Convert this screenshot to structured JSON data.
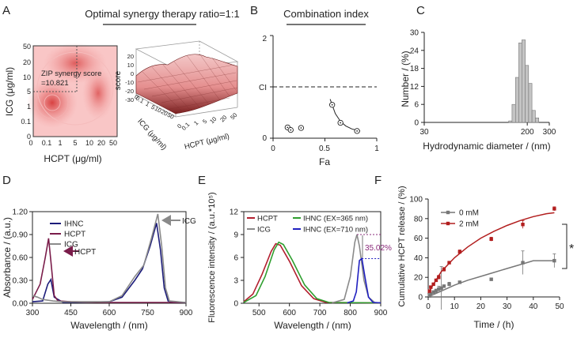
{
  "panels": {
    "A": {
      "letter": "A",
      "title": "Optimal synergy therapy ratio=1:1",
      "heatmap": {
        "ylabel": "ICG (μg/ml)",
        "xlabel": "HCPT (μg/ml)",
        "y_ticks": [
          "50",
          "20",
          "10",
          "5",
          "1",
          "0.1",
          "0"
        ],
        "x_ticks": [
          "0",
          "0.1",
          "1",
          "5",
          "10",
          "20",
          "50"
        ],
        "annotation_line1": "ZIP synergy score",
        "annotation_line2": "=10.821"
      },
      "surface": {
        "zlabel": "score",
        "z_ticks": [
          "20",
          "10",
          "0",
          "-10",
          "-20",
          "-30"
        ],
        "icg_ticks": [
          "0",
          "0.1",
          "1",
          "5",
          "10",
          "20",
          "50"
        ],
        "icg_label": "ICG (μg/ml)",
        "hcpt_ticks": [
          "0",
          "0.1",
          "1",
          "5",
          "10",
          "20",
          "50"
        ],
        "hcpt_label": "HCPT (μg/ml)"
      }
    },
    "B": {
      "letter": "B",
      "title": "Combination index",
      "ylabel": "CI",
      "xlabel": "Fa",
      "y_ticks": [
        "2",
        "1",
        "0"
      ],
      "x_ticks": [
        "0",
        "0.5",
        "1"
      ],
      "chart_data": {
        "type": "scatter",
        "title": "Combination index",
        "xlabel": "Fa",
        "ylabel": "CI",
        "xlim": [
          0,
          1
        ],
        "ylim": [
          0,
          2
        ],
        "reference_line_y": 1,
        "points": [
          {
            "fa": 0.14,
            "ci": 0.21
          },
          {
            "fa": 0.17,
            "ci": 0.16
          },
          {
            "fa": 0.27,
            "ci": 0.2
          },
          {
            "fa": 0.57,
            "ci": 0.65
          },
          {
            "fa": 0.65,
            "ci": 0.3
          },
          {
            "fa": 0.81,
            "ci": 0.14
          }
        ],
        "fit": [
          [
            0.55,
            0.76
          ],
          [
            0.6,
            0.48
          ],
          [
            0.65,
            0.33
          ],
          [
            0.7,
            0.24
          ],
          [
            0.76,
            0.18
          ],
          [
            0.84,
            0.14
          ]
        ]
      }
    },
    "C": {
      "letter": "C",
      "ylabel": "Number  / (%)",
      "xlabel": "Hydrodynamic diameter / (nm)",
      "chart_data": {
        "type": "bar",
        "xlabel": "Hydrodynamic diameter / (nm)",
        "ylabel": "Number / (%)",
        "x_scale": "log",
        "xlim": [
          30,
          300
        ],
        "ylim": [
          0,
          30
        ],
        "x_ticks": [
          "30",
          "200",
          "300"
        ],
        "y_ticks": [
          "0",
          "6",
          "12",
          "18",
          "24",
          "30"
        ],
        "bins": [
          {
            "from": 142,
            "to": 151,
            "value": 0.5
          },
          {
            "from": 151,
            "to": 161,
            "value": 6
          },
          {
            "from": 161,
            "to": 171,
            "value": 15
          },
          {
            "from": 171,
            "to": 181,
            "value": 26.5
          },
          {
            "from": 181,
            "to": 193,
            "value": 27.5
          },
          {
            "from": 193,
            "to": 205,
            "value": 19
          },
          {
            "from": 205,
            "to": 218,
            "value": 13
          },
          {
            "from": 218,
            "to": 232,
            "value": 4
          },
          {
            "from": 232,
            "to": 247,
            "value": 1.5
          }
        ]
      }
    },
    "D": {
      "letter": "D",
      "ylabel": "Absorbance / (a.u.)",
      "xlabel": "Wavelength / (nm)",
      "annot_hcpt": "HCPT",
      "annot_icg": "ICG",
      "chart_data": {
        "type": "line",
        "xlabel": "Wavelength / (nm)",
        "ylabel": "Absorbance / (a.u.)",
        "xlim": [
          300,
          900
        ],
        "ylim": [
          0,
          1.2
        ],
        "x_ticks": [
          "300",
          "450",
          "600",
          "750",
          "900"
        ],
        "y_ticks": [
          "0.00",
          "0.30",
          "0.60",
          "0.90",
          "1.20"
        ],
        "legend": [
          "IHNC",
          "HCPT",
          "ICG"
        ],
        "series": [
          {
            "name": "IHNC",
            "color": "#1c1c7a",
            "points": [
              [
                300,
                0.02
              ],
              [
                340,
                0.03
              ],
              [
                360,
                0.25
              ],
              [
                372,
                0.31
              ],
              [
                385,
                0.08
              ],
              [
                420,
                0.01
              ],
              [
                600,
                0.02
              ],
              [
                650,
                0.08
              ],
              [
                700,
                0.3
              ],
              [
                730,
                0.45
              ],
              [
                760,
                0.75
              ],
              [
                785,
                1.05
              ],
              [
                800,
                0.7
              ],
              [
                815,
                0.2
              ],
              [
                830,
                0.03
              ],
              [
                850,
                0.01
              ],
              [
                900,
                0.01
              ]
            ]
          },
          {
            "name": "HCPT",
            "color": "#7a1c4a",
            "points": [
              [
                300,
                0.05
              ],
              [
                330,
                0.25
              ],
              [
                350,
                0.6
              ],
              [
                363,
                0.85
              ],
              [
                372,
                0.55
              ],
              [
                385,
                0.1
              ],
              [
                400,
                0.03
              ],
              [
                450,
                0.02
              ],
              [
                600,
                0.01
              ],
              [
                900,
                0.01
              ]
            ]
          },
          {
            "name": "ICG",
            "color": "#8a8a8a",
            "points": [
              [
                300,
                0.1
              ],
              [
                320,
                0.08
              ],
              [
                340,
                0.05
              ],
              [
                380,
                0.03
              ],
              [
                420,
                0.02
              ],
              [
                600,
                0.02
              ],
              [
                650,
                0.1
              ],
              [
                700,
                0.35
              ],
              [
                735,
                0.5
              ],
              [
                765,
                0.85
              ],
              [
                790,
                1.17
              ],
              [
                805,
                0.75
              ],
              [
                820,
                0.2
              ],
              [
                835,
                0.03
              ],
              [
                900,
                0.01
              ]
            ]
          }
        ]
      }
    },
    "E": {
      "letter": "E",
      "ylabel": "Fluorescence intensity / (a.u.*10⁵)",
      "xlabel": "Wavelength / (nm)",
      "percent": "35.02%",
      "chart_data": {
        "type": "line",
        "xlabel": "Wavelength / (nm)",
        "ylabel": "Fluorescence intensity / (a.u.*10^5)",
        "xlim": [
          450,
          900
        ],
        "ylim": [
          0,
          12
        ],
        "x_ticks": [
          "500",
          "600",
          "700",
          "800",
          "900"
        ],
        "y_ticks": [
          "0",
          "3",
          "6",
          "9",
          "12"
        ],
        "legend": [
          "HCPT",
          "IHNC (EX=365 nm)",
          "ICG",
          "IHNC (EX=710 nm)"
        ],
        "annotation": "35.02%",
        "series": [
          {
            "name": "HCPT",
            "color": "#b21e2e",
            "points": [
              [
                450,
                0.2
              ],
              [
                480,
                1.2
              ],
              [
                510,
                3.8
              ],
              [
                540,
                6.8
              ],
              [
                555,
                7.8
              ],
              [
                570,
                7.6
              ],
              [
                600,
                5.5
              ],
              [
                640,
                2.3
              ],
              [
                680,
                0.6
              ],
              [
                720,
                0.1
              ],
              [
                900,
                0.05
              ]
            ]
          },
          {
            "name": "IHNC (EX=365 nm)",
            "color": "#2e9e2e",
            "points": [
              [
                450,
                0.1
              ],
              [
                490,
                1.0
              ],
              [
                520,
                3.5
              ],
              [
                550,
                7.0
              ],
              [
                565,
                8.0
              ],
              [
                580,
                7.7
              ],
              [
                610,
                5.6
              ],
              [
                650,
                2.4
              ],
              [
                690,
                0.6
              ],
              [
                730,
                0.1
              ],
              [
                900,
                0.05
              ]
            ]
          },
          {
            "name": "ICG",
            "color": "#8a8a8a",
            "points": [
              [
                740,
                0.05
              ],
              [
                780,
                0.5
              ],
              [
                800,
                3.5
              ],
              [
                815,
                8.0
              ],
              [
                822,
                9.0
              ],
              [
                830,
                7.5
              ],
              [
                845,
                3.0
              ],
              [
                860,
                0.8
              ],
              [
                880,
                0.1
              ],
              [
                900,
                0.05
              ]
            ]
          },
          {
            "name": "IHNC (EX=710 nm)",
            "color": "#2020c0",
            "points": [
              [
                790,
                0.05
              ],
              [
                810,
                0.3
              ],
              [
                820,
                1.5
              ],
              [
                830,
                5.6
              ],
              [
                838,
                5.85
              ],
              [
                848,
                3.5
              ],
              [
                860,
                0.8
              ],
              [
                875,
                0.1
              ],
              [
                900,
                0.05
              ]
            ]
          }
        ]
      }
    },
    "F": {
      "letter": "F",
      "ylabel": "Cumulative HCPT release / (%)",
      "xlabel": "Time / (h)",
      "star": "*",
      "chart_data": {
        "type": "scatter",
        "xlabel": "Time / (h)",
        "ylabel": "Cumulative HCPT release / (%)",
        "xlim": [
          0,
          50
        ],
        "ylim": [
          0,
          100
        ],
        "x_ticks": [
          "0",
          "10",
          "20",
          "30",
          "40",
          "50"
        ],
        "y_ticks": [
          "0",
          "20",
          "40",
          "60",
          "80",
          "100"
        ],
        "legend": [
          "0 mM",
          "2 mM"
        ],
        "significance": "*",
        "series": [
          {
            "name": "0 mM",
            "color": "#777777",
            "points": [
              [
                0.5,
                1
              ],
              [
                1,
                3
              ],
              [
                2,
                5
              ],
              [
                3,
                6
              ],
              [
                4,
                8
              ],
              [
                5,
                9
              ],
              [
                6,
                11
              ],
              [
                8,
                13
              ],
              [
                12,
                15
              ],
              [
                24,
                18
              ],
              [
                36,
                35
              ],
              [
                48,
                37
              ]
            ],
            "errors": [
              1,
              1,
              1,
              2,
              3,
              22,
              1,
              2,
              1,
              1,
              12,
              7
            ],
            "fit": [
              [
                0,
                0
              ],
              [
                5,
                6
              ],
              [
                10,
                12
              ],
              [
                15,
                17
              ],
              [
                20,
                21
              ],
              [
                25,
                25
              ],
              [
                30,
                29
              ],
              [
                35,
                33
              ],
              [
                40,
                37
              ],
              [
                45,
                37
              ],
              [
                48,
                37
              ]
            ]
          },
          {
            "name": "2 mM",
            "color": "#b21e1e",
            "points": [
              [
                0.5,
                6
              ],
              [
                1,
                10
              ],
              [
                2,
                13
              ],
              [
                3,
                17
              ],
              [
                4,
                20
              ],
              [
                6,
                28
              ],
              [
                8,
                35
              ],
              [
                12,
                46
              ],
              [
                24,
                59
              ],
              [
                36,
                74
              ],
              [
                48,
                90
              ]
            ],
            "errors": [
              1,
              1,
              1,
              1,
              2,
              2,
              1,
              2,
              2,
              4,
              2
            ],
            "fit": [
              [
                0,
                4
              ],
              [
                5,
                26
              ],
              [
                10,
                40
              ],
              [
                15,
                51
              ],
              [
                20,
                60
              ],
              [
                25,
                67
              ],
              [
                30,
                73
              ],
              [
                35,
                78
              ],
              [
                40,
                82
              ],
              [
                45,
                85
              ],
              [
                48,
                86
              ]
            ]
          }
        ]
      }
    }
  }
}
